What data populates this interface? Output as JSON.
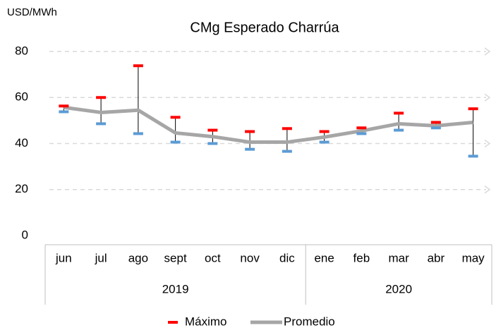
{
  "chart_data": {
    "type": "line",
    "title": "CMg Esperado Charrúa",
    "y_label": "USD/MWh",
    "categories": [
      "jun",
      "jul",
      "ago",
      "sept",
      "oct",
      "nov",
      "dic",
      "ene",
      "feb",
      "mar",
      "abr",
      "may"
    ],
    "x_groups": [
      {
        "label": "2019",
        "count": 7
      },
      {
        "label": "2020",
        "count": 5
      }
    ],
    "series": [
      {
        "name": "Promedio",
        "color": "#a6a6a6",
        "values": [
          55.7,
          53.5,
          54.5,
          44.6,
          43,
          40.6,
          40.6,
          42.8,
          45.5,
          48.6,
          47.7,
          49.2
        ]
      },
      {
        "name": "Máximo",
        "color": "#ff0000",
        "values": [
          56.3,
          60,
          73.8,
          51.4,
          45.8,
          45.2,
          46.5,
          45.2,
          46.8,
          53.2,
          49.2,
          55.1
        ]
      },
      {
        "color": "#5b9bd5",
        "values": [
          53.8,
          48.6,
          44.3,
          40.6,
          40,
          37.5,
          36.6,
          40.6,
          44.3,
          45.8,
          46.8,
          34.5
        ]
      }
    ],
    "ylim": [
      0,
      80
    ],
    "yticks": [
      0,
      20,
      40,
      60,
      80
    ],
    "grid": true
  }
}
